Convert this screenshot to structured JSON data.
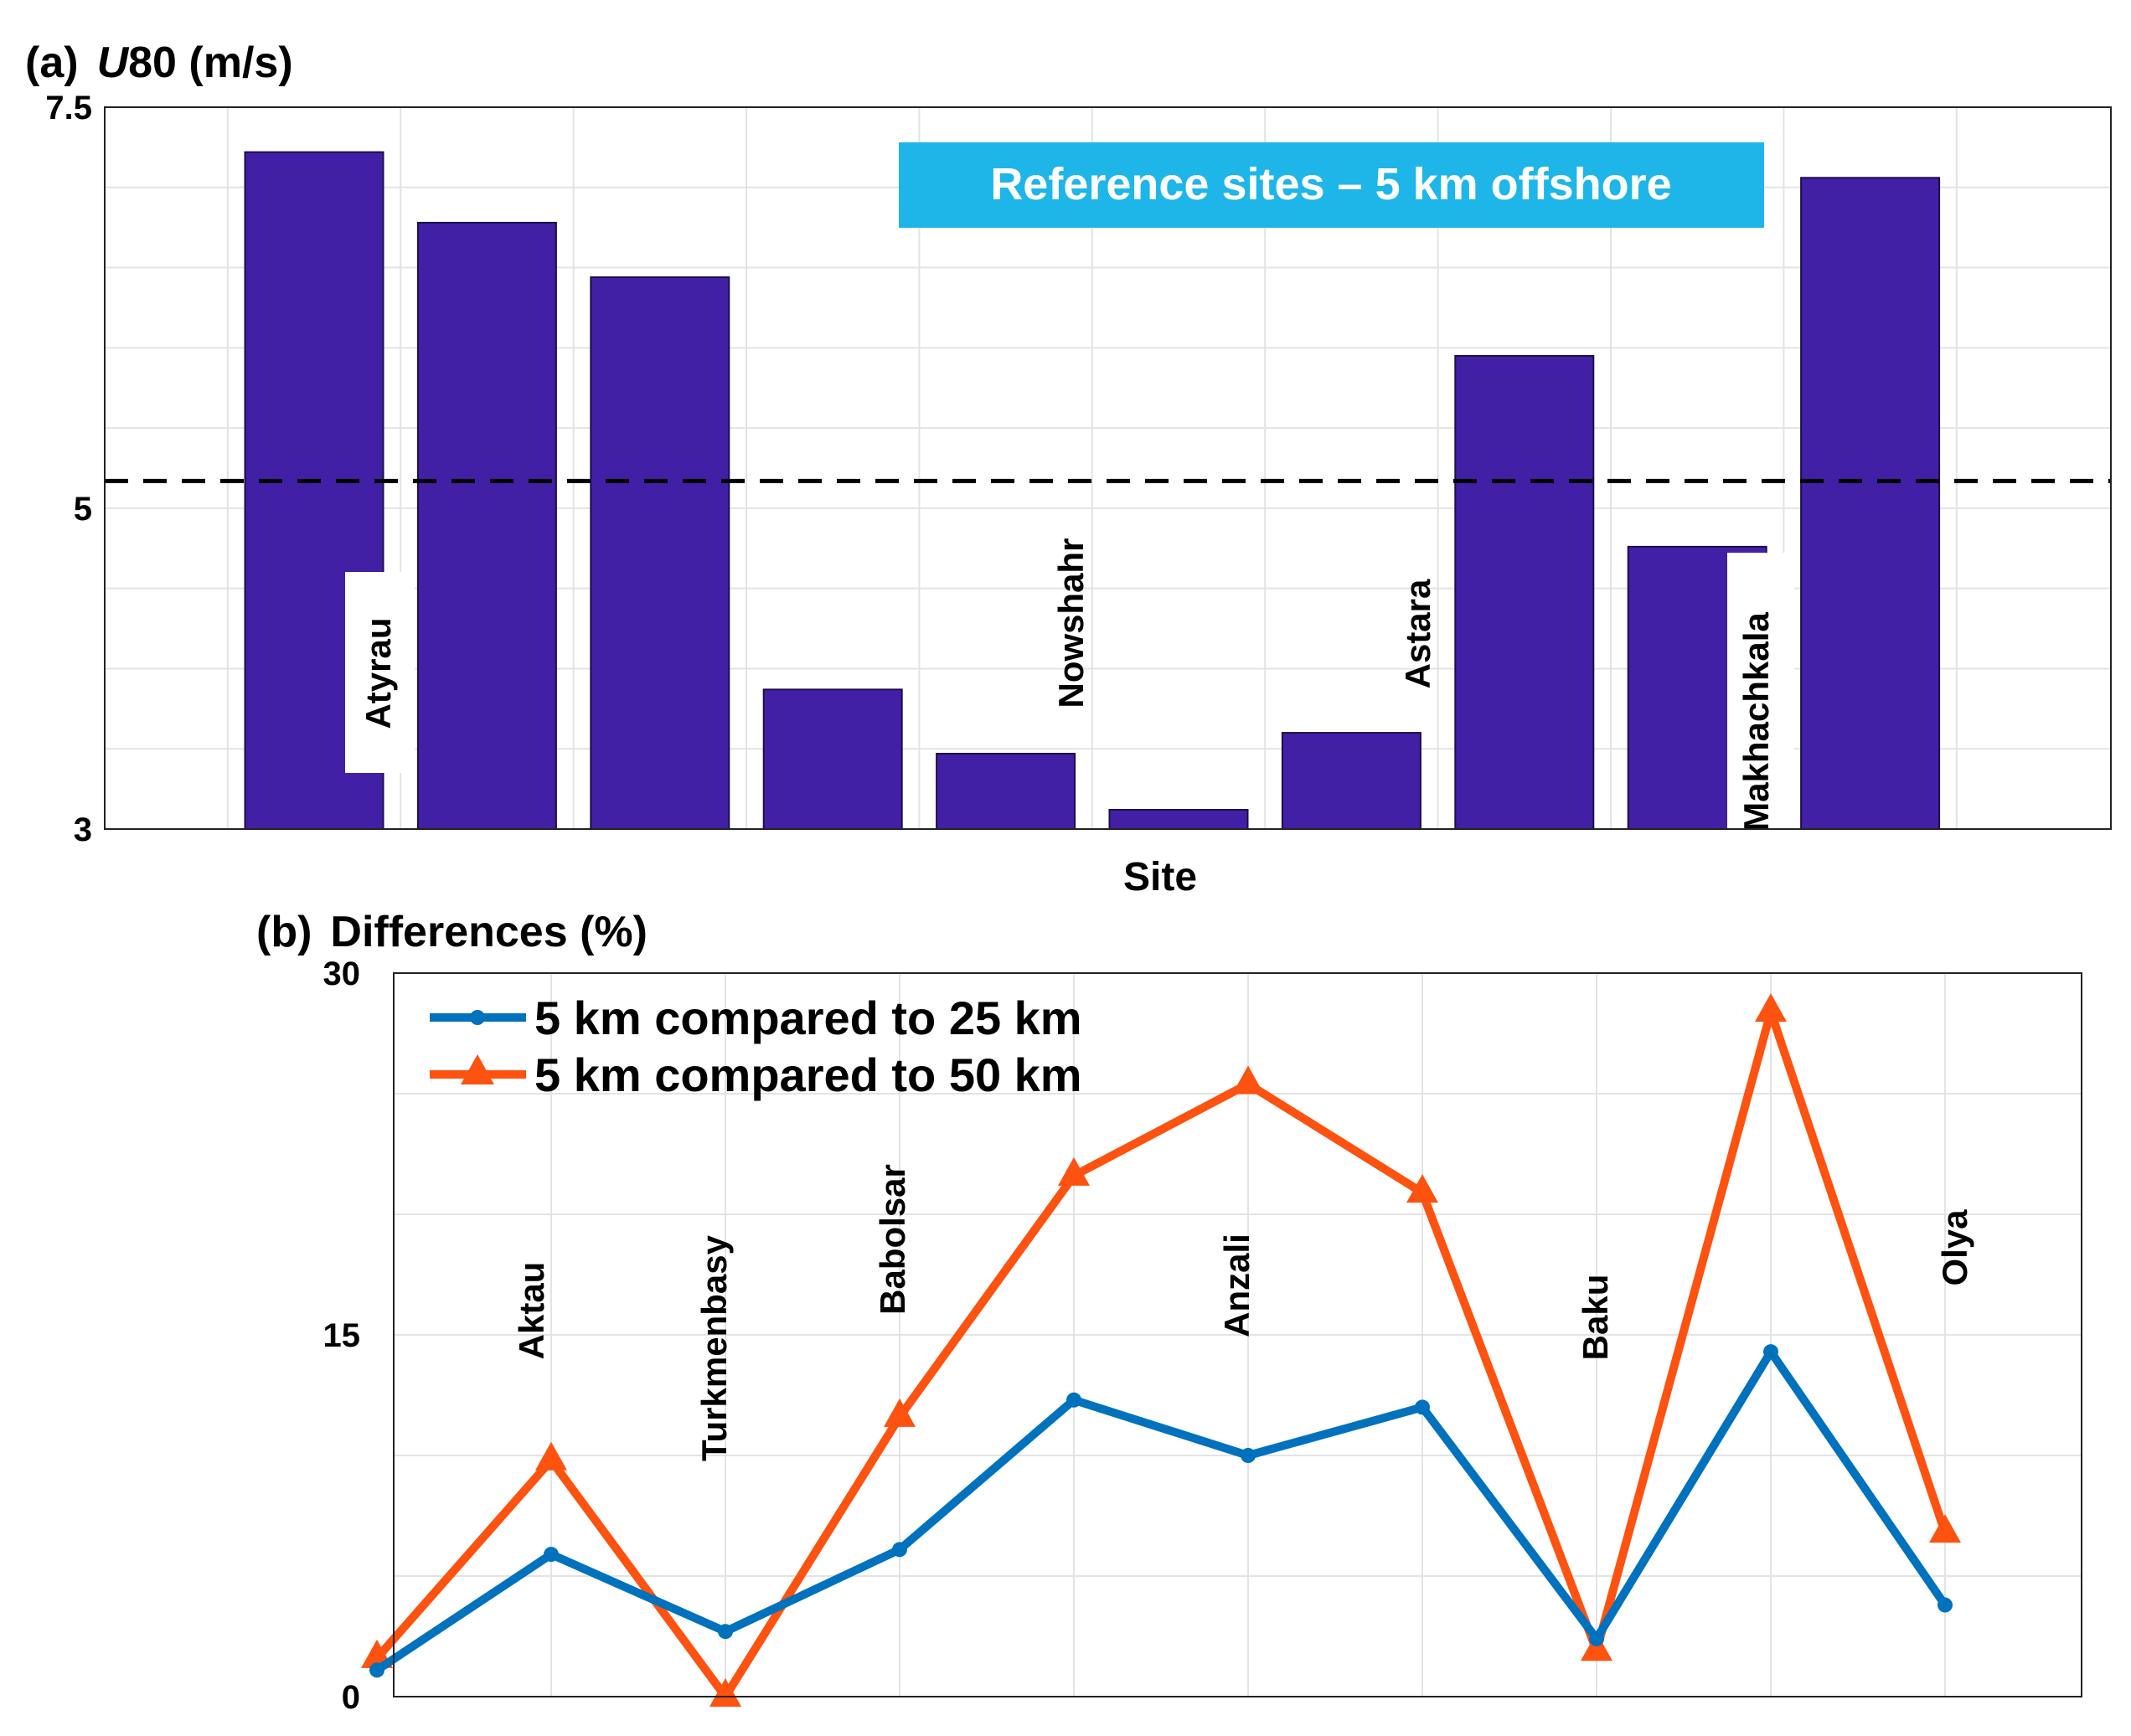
{
  "chart_data": [
    {
      "id": "a",
      "type": "bar",
      "title_prefix": "(a)",
      "title_var": "U",
      "title_rest": "80 (m/s)",
      "xlabel": "Site",
      "ylim": [
        3,
        7.5
      ],
      "yticks": [
        "3",
        "5",
        "7.5"
      ],
      "ytick_values": [
        3,
        5,
        7.5
      ],
      "reference_line": 5.17,
      "annotation": "Reference sites – 5 km offshore",
      "categories": [
        "Atyrau",
        "Aktau",
        "Turkmenbasy",
        "Babolsar",
        "Nowshahr",
        "Anzali",
        "Astara",
        "Baku",
        "Makhachkala",
        "Olya"
      ],
      "values": [
        7.22,
        6.78,
        6.44,
        3.87,
        3.47,
        3.12,
        3.6,
        5.95,
        4.76,
        7.06
      ],
      "labeled_categories": [
        "Atyrau",
        "Nowshahr",
        "Astara",
        "Makhachkala"
      ],
      "bar_color": "#4120a6"
    },
    {
      "id": "b",
      "type": "line",
      "title_prefix": "(b)",
      "title_rest": "Differences (%)",
      "ylim": [
        0,
        30
      ],
      "yticks": [
        "0",
        "15",
        "30"
      ],
      "ytick_values": [
        0,
        15,
        30
      ],
      "categories": [
        "Atyrau",
        "Aktau",
        "Turkmenbasy",
        "Babolsar",
        "Nowshahr",
        "Anzali",
        "Astara",
        "Baku",
        "Makhachkala",
        "Olya"
      ],
      "labeled_categories": [
        "Aktau",
        "Turkmenbasy",
        "Babolsar",
        "Anzali",
        "Baku",
        "Olya"
      ],
      "series": [
        {
          "name": "5 km compared to 25 km",
          "marker": "circle",
          "color": "#0072bd",
          "values": [
            1.1,
            5.9,
            2.7,
            6.1,
            12.3,
            10.0,
            12.0,
            2.4,
            14.3,
            3.8
          ]
        },
        {
          "name": "5 km compared to 50 km",
          "marker": "triangle",
          "color": "#fd5210",
          "values": [
            1.6,
            9.8,
            0.0,
            11.6,
            21.6,
            25.4,
            20.9,
            1.9,
            28.4,
            6.8
          ]
        }
      ]
    }
  ]
}
